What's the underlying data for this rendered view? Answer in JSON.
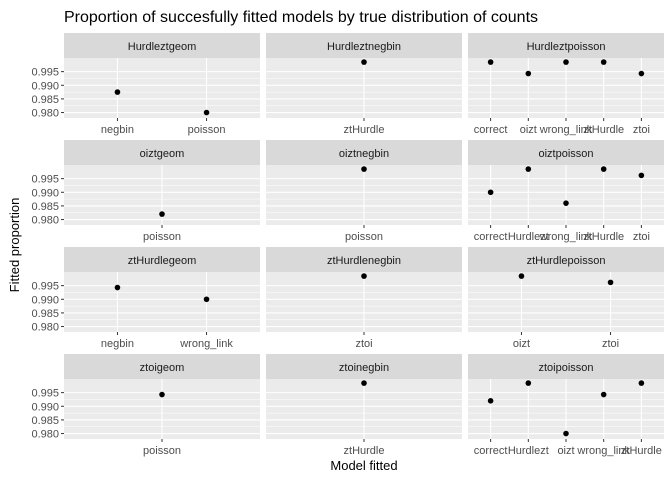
{
  "chart_data": {
    "type": "scatter",
    "title": "Proportion of succesfully fitted models by true distribution of counts",
    "xlabel": "Model fitted",
    "ylabel": "Fitted proportion",
    "ylim": [
      0.978,
      1.0
    ],
    "yticks": [
      {
        "v": 0.98,
        "label": "0.980"
      },
      {
        "v": 0.985,
        "label": "0.985"
      },
      {
        "v": 0.99,
        "label": "0.990"
      },
      {
        "v": 0.995,
        "label": "0.995"
      }
    ],
    "grid": true,
    "colors": {
      "panel_bg": "#ebebeb",
      "strip_bg": "#d9d9d9",
      "gridline": "#ffffff",
      "point": "#000000",
      "text": "#4d4d4d",
      "title": "#000000"
    },
    "panels": [
      {
        "title": "Hurdleztgeom",
        "categories": [
          "negbin",
          "poisson"
        ],
        "values": [
          0.9875,
          0.98
        ]
      },
      {
        "title": "Hurdleztnegbin",
        "categories": [
          "ztHurdle"
        ],
        "values": [
          0.9985
        ]
      },
      {
        "title": "Hurdleztpoisson",
        "categories": [
          "correct",
          "oizt",
          "wrong_link",
          "ztHurdle",
          "ztoi"
        ],
        "values": [
          0.9985,
          0.9943,
          0.9985,
          0.9985,
          0.9943
        ]
      },
      {
        "title": "oiztgeom",
        "categories": [
          "poisson"
        ],
        "values": [
          0.982
        ]
      },
      {
        "title": "oiztnegbin",
        "categories": [
          "poisson"
        ],
        "values": [
          0.9985
        ]
      },
      {
        "title": "oiztpoisson",
        "categories": [
          "correct",
          "Hurdlezt",
          "wrong_link",
          "ztHurdle",
          "ztoi"
        ],
        "values": [
          0.99,
          0.9985,
          0.986,
          0.9985,
          0.9962
        ]
      },
      {
        "title": "ztHurdlegeom",
        "categories": [
          "negbin",
          "wrong_link"
        ],
        "values": [
          0.9943,
          0.99
        ]
      },
      {
        "title": "ztHurdlenegbin",
        "categories": [
          "ztoi"
        ],
        "values": [
          0.9985
        ]
      },
      {
        "title": "ztHurdlepoisson",
        "categories": [
          "oizt",
          "ztoi"
        ],
        "values": [
          0.9985,
          0.9962
        ]
      },
      {
        "title": "ztoigeom",
        "categories": [
          "poisson"
        ],
        "values": [
          0.9943
        ]
      },
      {
        "title": "ztoinegbin",
        "categories": [
          "ztHurdle"
        ],
        "values": [
          0.9985
        ]
      },
      {
        "title": "ztoipoisson",
        "categories": [
          "correct",
          "Hurdlezt",
          "oizt",
          "wrong_link",
          "ztHurdle"
        ],
        "values": [
          0.992,
          0.9985,
          0.98,
          0.9943,
          0.9985
        ]
      }
    ]
  }
}
